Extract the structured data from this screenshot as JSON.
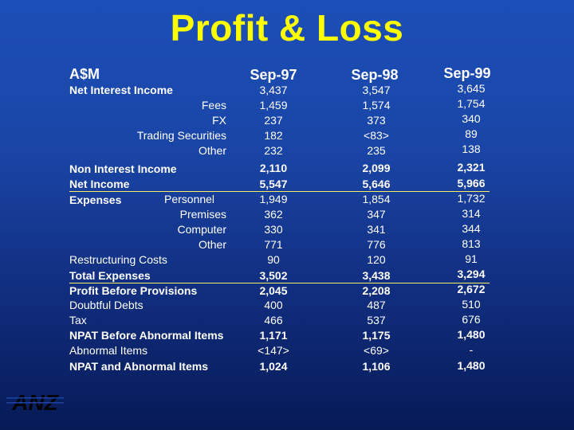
{
  "title": "Profit & Loss",
  "unit_label": "A$M",
  "columns": [
    "Sep-97",
    "Sep-98",
    "Sep-99"
  ],
  "rows": [
    {
      "label": "Net Interest Income",
      "values": [
        "3,437",
        "3,547",
        "3,645"
      ]
    },
    {
      "label": "Fees",
      "values": [
        "1,459",
        "1,574",
        "1,754"
      ]
    },
    {
      "label": "FX",
      "values": [
        "237",
        "373",
        "340"
      ]
    },
    {
      "label": "Trading Securities",
      "values": [
        "182",
        "<83>",
        "89"
      ]
    },
    {
      "label": "Other",
      "values": [
        "232",
        "235",
        "138"
      ]
    },
    {
      "label": "Non Interest Income",
      "values": [
        "2,110",
        "2,099",
        "2,321"
      ]
    },
    {
      "label": "Net Income",
      "values": [
        "5,547",
        "5,646",
        "5,966"
      ]
    },
    {
      "label": "Expenses",
      "sublabel": "Personnel",
      "values": [
        "1,949",
        "1,854",
        "1,732"
      ]
    },
    {
      "label": "Premises",
      "values": [
        "362",
        "347",
        "314"
      ]
    },
    {
      "label": "Computer",
      "values": [
        "330",
        "341",
        "344"
      ]
    },
    {
      "label": "Other",
      "values": [
        "771",
        "776",
        "813"
      ]
    },
    {
      "label": "Restructuring Costs",
      "values": [
        "90",
        "120",
        "91"
      ]
    },
    {
      "label": "Total Expenses",
      "values": [
        "3,502",
        "3,438",
        "3,294"
      ]
    },
    {
      "label": "Profit Before Provisions",
      "values": [
        "2,045",
        "2,208",
        "2,672"
      ]
    },
    {
      "label": "Doubtful Debts",
      "values": [
        "400",
        "487",
        "510"
      ]
    },
    {
      "label": "Tax",
      "values": [
        "466",
        "537",
        "676"
      ]
    },
    {
      "label": "NPAT Before Abnormal Items",
      "values": [
        "1,171",
        "1,175",
        "1,480"
      ]
    },
    {
      "label": "Abnormal Items",
      "values": [
        "<147>",
        "<69>",
        "-"
      ]
    },
    {
      "label": "NPAT and Abnormal Items",
      "values": [
        "1,024",
        "1,106",
        "1,480"
      ]
    }
  ],
  "logo_text": "ANZ",
  "colors": {
    "title": "#ffff00",
    "text": "#ffffff",
    "underline": "#ffee66",
    "background": "#1a45a6"
  }
}
